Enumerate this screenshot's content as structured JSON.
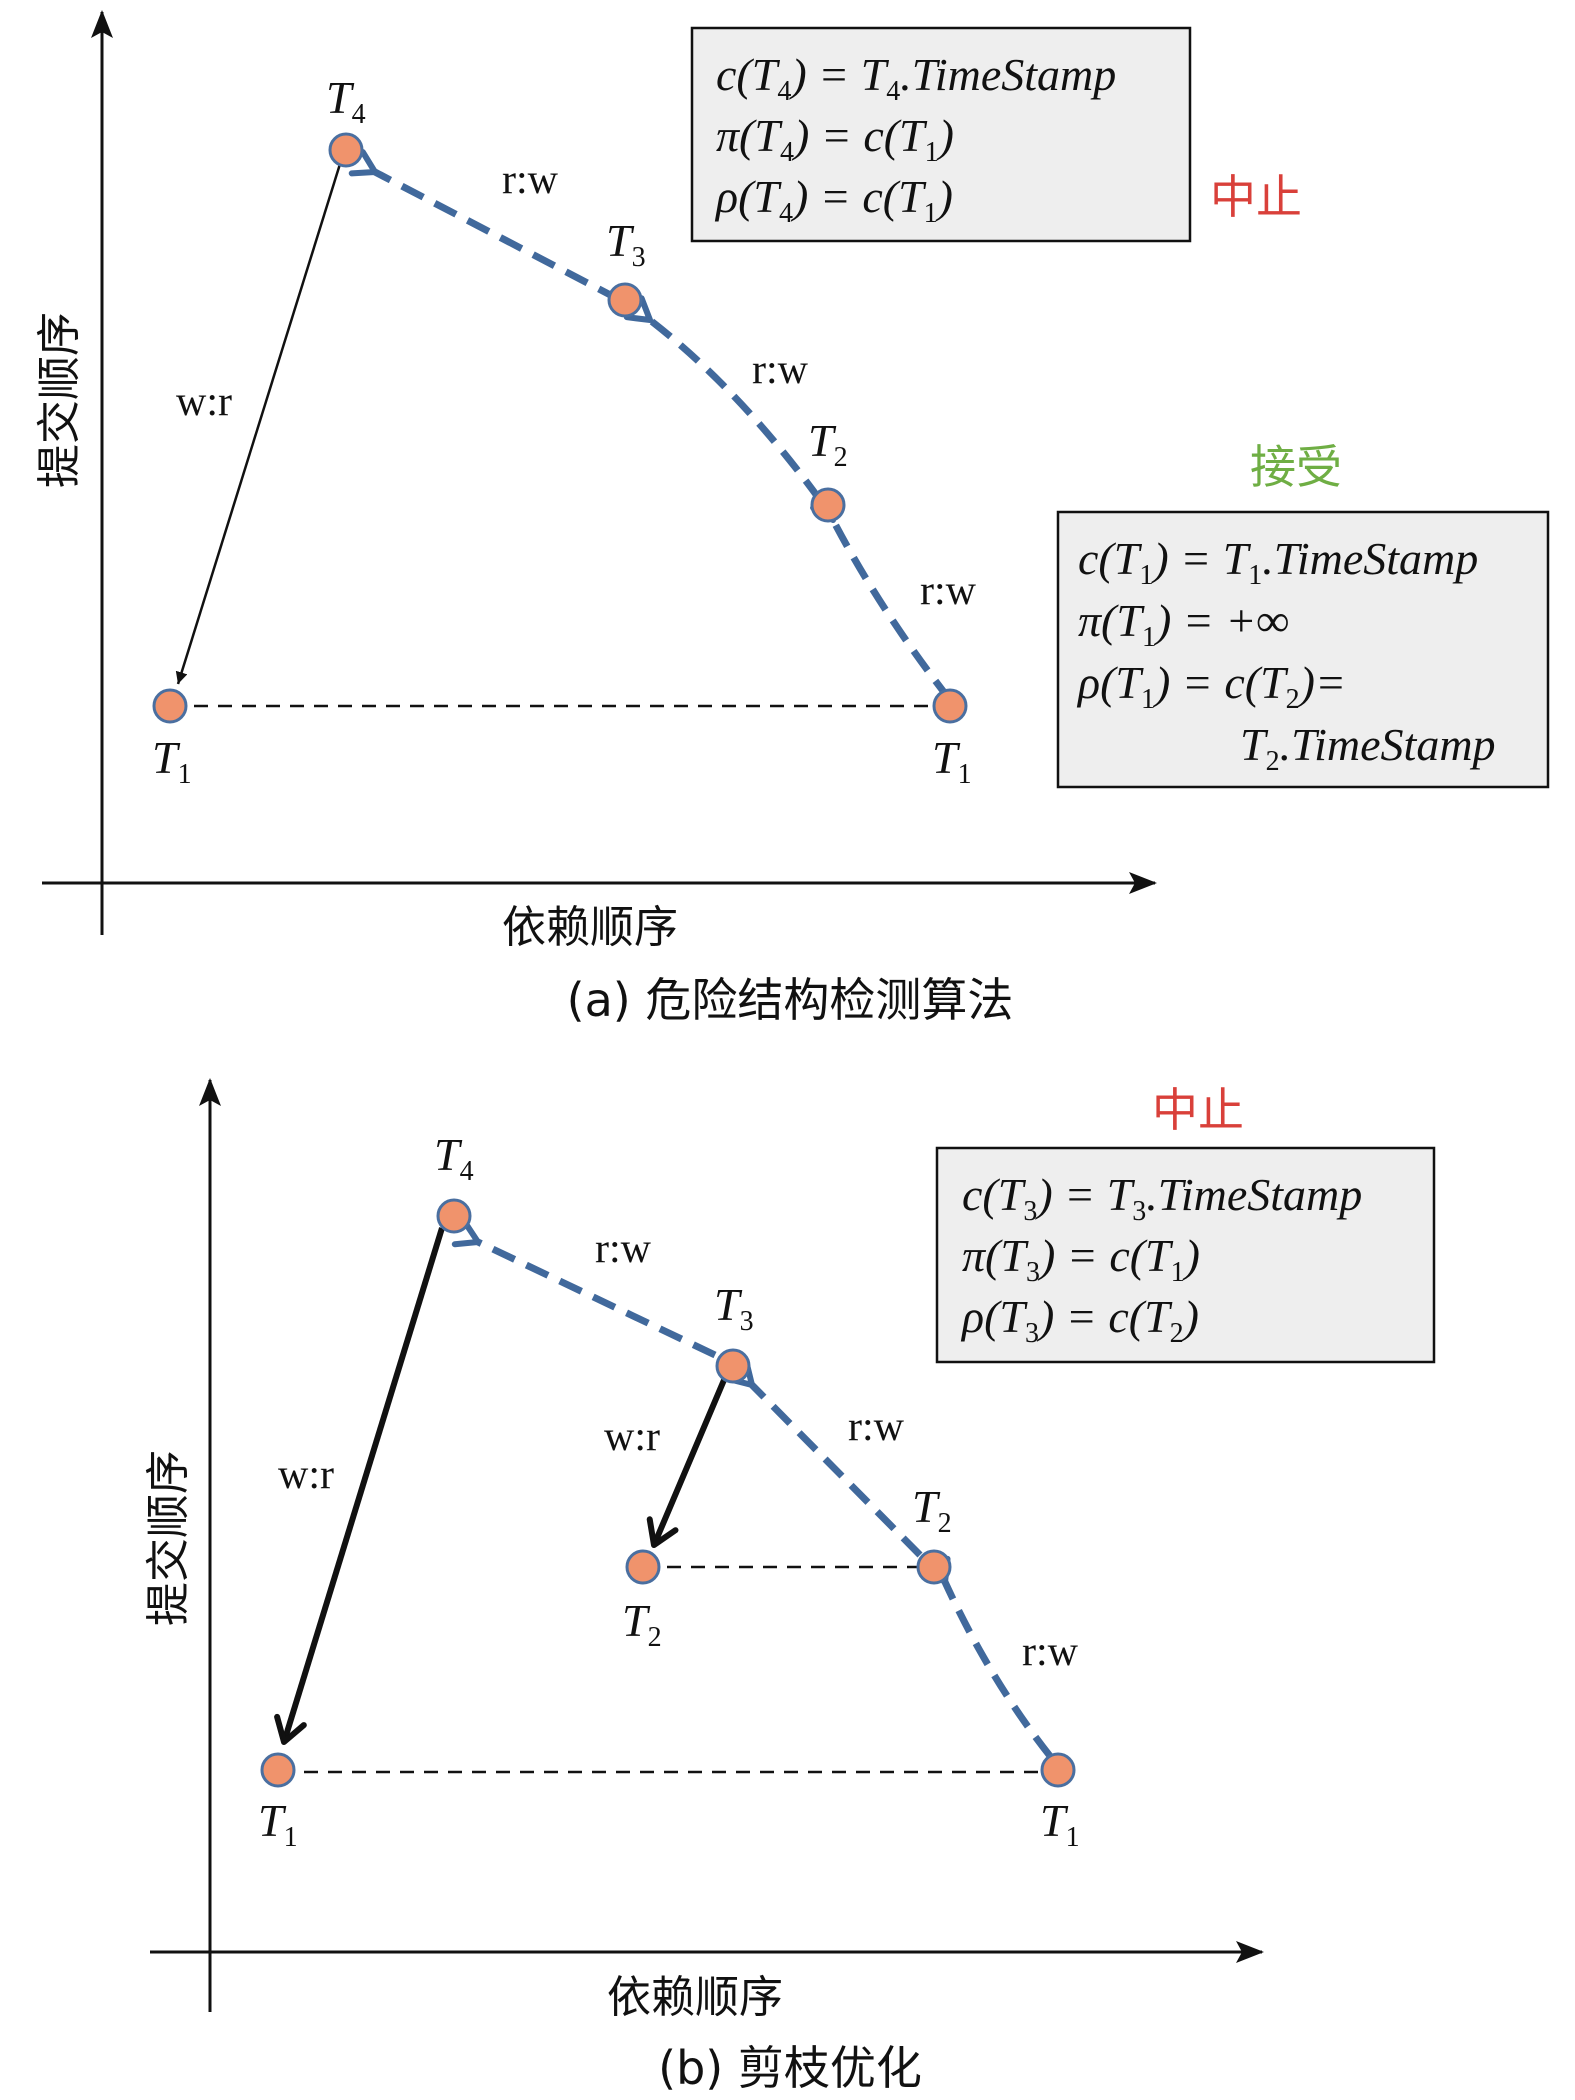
{
  "panel_a": {
    "y_axis_label": "提交顺序",
    "x_axis_label": "依赖顺序",
    "caption": "(a)  危险结构检测算法",
    "nodes": {
      "T4": {
        "letter": "T",
        "sub": "4"
      },
      "T3": {
        "letter": "T",
        "sub": "3"
      },
      "T2": {
        "letter": "T",
        "sub": "2"
      },
      "T1_left": {
        "letter": "T",
        "sub": "1"
      },
      "T1_right": {
        "letter": "T",
        "sub": "1"
      }
    },
    "edges": {
      "t4_to_t1": "w:r",
      "t3_to_t4": "r:w",
      "t2_to_t3": "r:w",
      "t1_to_t2": "r:w"
    },
    "status_abort": "中止",
    "status_accept": "接受",
    "box_top": {
      "line1": {
        "p1": "c(T",
        "s1": "4",
        "p2": ") = T",
        "s2": "4",
        "p3": ".TimeStamp"
      },
      "line2": {
        "p1": "π(T",
        "s1": "4",
        "p2": ") = c(T",
        "s2": "1",
        "p3": ")"
      },
      "line3": {
        "p1": "ρ(T",
        "s1": "4",
        "p2": ") = c(T",
        "s2": "1",
        "p3": ")"
      }
    },
    "box_bottom": {
      "line1": {
        "p1": "c(T",
        "s1": "1",
        "p2": ") = T",
        "s2": "1",
        "p3": ".TimeStamp"
      },
      "line2": {
        "p1": "π(T",
        "s1": "1",
        "p2": ") = +∞"
      },
      "line3": {
        "p1": "ρ(T",
        "s1": "1",
        "p2": ") = c(T",
        "s2": "2",
        "p3": ")="
      },
      "line4": {
        "p1": "T",
        "s1": "2",
        "p2": ".TimeStamp"
      }
    }
  },
  "panel_b": {
    "y_axis_label": "提交顺序",
    "x_axis_label": "依赖顺序",
    "caption": "(b)  剪枝优化",
    "nodes": {
      "T4": {
        "letter": "T",
        "sub": "4"
      },
      "T3": {
        "letter": "T",
        "sub": "3"
      },
      "T2_right": {
        "letter": "T",
        "sub": "2"
      },
      "T2_left": {
        "letter": "T",
        "sub": "2"
      },
      "T1_left": {
        "letter": "T",
        "sub": "1"
      },
      "T1_right": {
        "letter": "T",
        "sub": "1"
      }
    },
    "edges": {
      "t4_to_t1": "w:r",
      "t3_to_t2": "w:r",
      "t3_to_t4": "r:w",
      "t2_to_t3": "r:w",
      "t1_to_t2": "r:w"
    },
    "status_abort": "中止",
    "box": {
      "line1": {
        "p1": "c(T",
        "s1": "3",
        "p2": ") = T",
        "s2": "3",
        "p3": ".TimeStamp"
      },
      "line2": {
        "p1": "π(T",
        "s1": "3",
        "p2": ") = c(T",
        "s2": "1",
        "p3": ")"
      },
      "line3": {
        "p1": "ρ(T",
        "s1": "3",
        "p2": ") = c(T",
        "s2": "2",
        "p3": ")"
      }
    }
  },
  "colors": {
    "node_fill": "#F0936C",
    "node_stroke": "#4A6FA0",
    "dashed_edge": "#41699C",
    "abort": "#D9403A",
    "accept": "#6FAE44",
    "box_fill": "#EEEEEE"
  }
}
